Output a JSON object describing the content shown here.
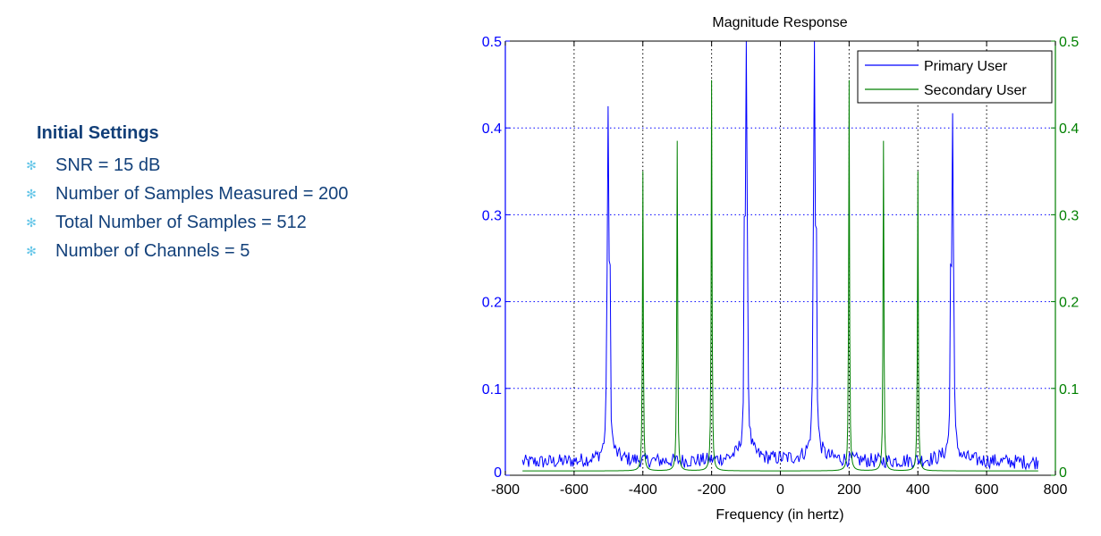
{
  "settings": {
    "heading": "Initial Settings",
    "items": [
      "SNR = 15 dB",
      "Number of Samples Measured = 200",
      "Total Number of Samples = 512",
      "Number of Channels = 5"
    ]
  },
  "chart_data": {
    "type": "line",
    "title": "Magnitude Response",
    "xlabel": "Frequency (in hertz)",
    "ylabel": "",
    "xlim": [
      -800,
      800
    ],
    "ylim_left": [
      0,
      0.5
    ],
    "ylim_right": [
      0,
      0.5
    ],
    "x_ticks": [
      -800,
      -600,
      -400,
      -200,
      0,
      200,
      400,
      600,
      800
    ],
    "y_ticks_left": [
      "0",
      "0.1",
      "0.2",
      "0.3",
      "0.4",
      "0.5"
    ],
    "y_ticks_right": [
      "0",
      "0.1",
      "0.2",
      "0.3",
      "0.4",
      "0.5"
    ],
    "grid": true,
    "legend_position": "top-right",
    "colors": {
      "primary": "#0000ff",
      "secondary": "#008000",
      "axis_left": "#0000ff",
      "axis_right": "#008000",
      "grid_x": "#000000"
    },
    "series": [
      {
        "name": "Primary User",
        "axis": "left",
        "x_range": [
          -750,
          750
        ],
        "noise_level": 0.014,
        "peaks": [
          {
            "x": -500,
            "y": 0.41
          },
          {
            "x": -100,
            "y": 0.5
          },
          {
            "x": 100,
            "y": 0.5
          },
          {
            "x": 500,
            "y": 0.41
          }
        ]
      },
      {
        "name": "Secondary User",
        "axis": "right",
        "x_range": [
          -750,
          750
        ],
        "baseline": 0.005,
        "peaks": [
          {
            "x": -400,
            "y": 0.345
          },
          {
            "x": -300,
            "y": 0.38
          },
          {
            "x": -200,
            "y": 0.45
          },
          {
            "x": 200,
            "y": 0.45
          },
          {
            "x": 300,
            "y": 0.38
          },
          {
            "x": 400,
            "y": 0.345
          }
        ]
      }
    ]
  }
}
